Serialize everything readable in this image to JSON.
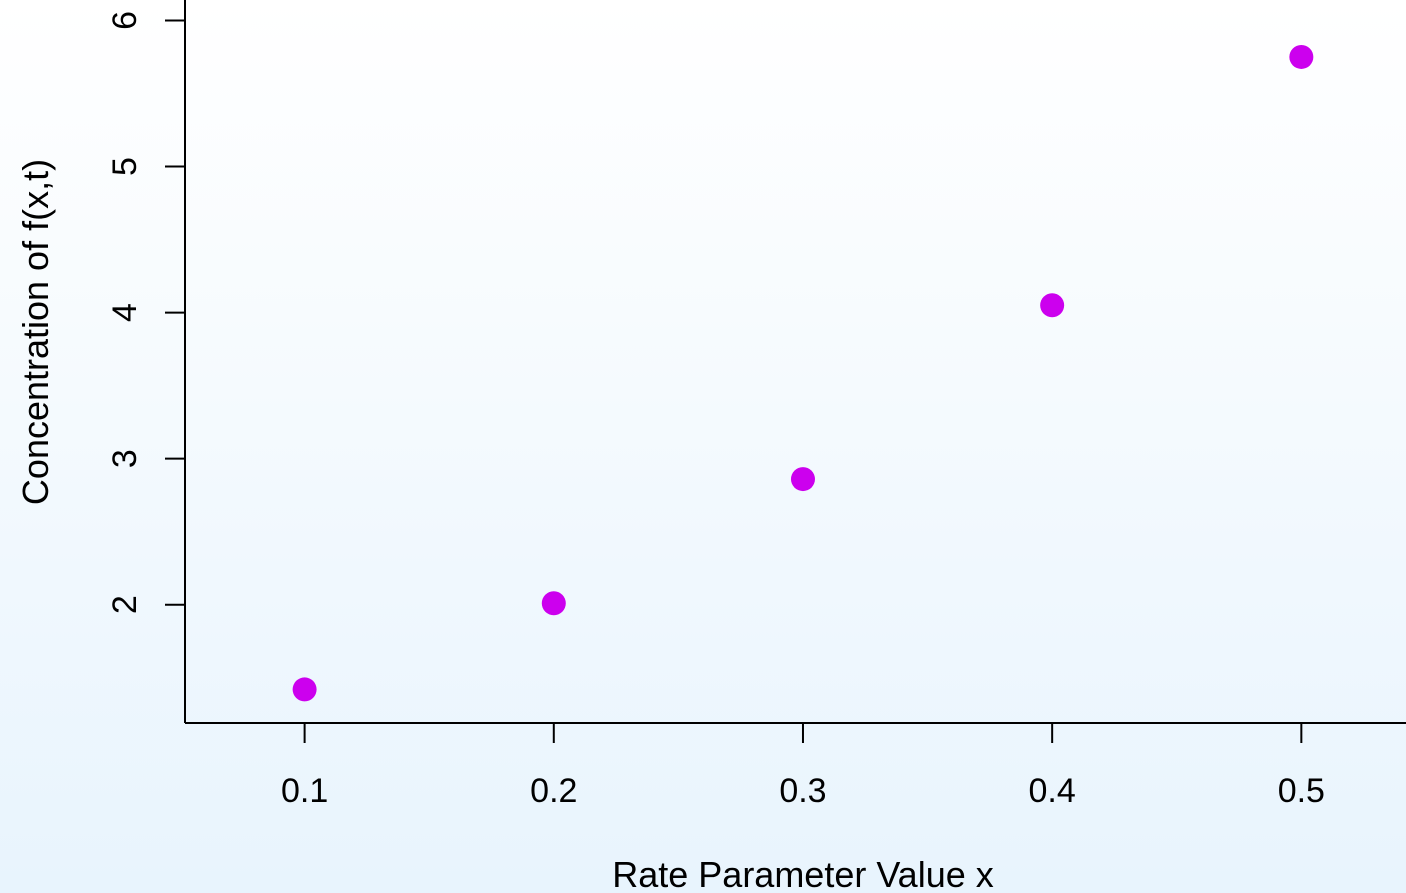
{
  "chart_data": {
    "type": "scatter",
    "title": "",
    "xlabel": "Rate Parameter Value x",
    "ylabel": "Concentration of f(x,t)",
    "x": [
      0.1,
      0.2,
      0.3,
      0.4,
      0.5
    ],
    "y": [
      1.42,
      2.01,
      2.86,
      4.05,
      5.75
    ],
    "xticks": [
      "0.1",
      "0.2",
      "0.3",
      "0.4",
      "0.5"
    ],
    "yticks": [
      "2",
      "3",
      "4",
      "5",
      "6"
    ],
    "xlim": [
      0.052,
      0.542
    ],
    "ylim": [
      1.19,
      6.14
    ],
    "point_color": "#cc00ee",
    "grid": false,
    "legend": "none"
  }
}
